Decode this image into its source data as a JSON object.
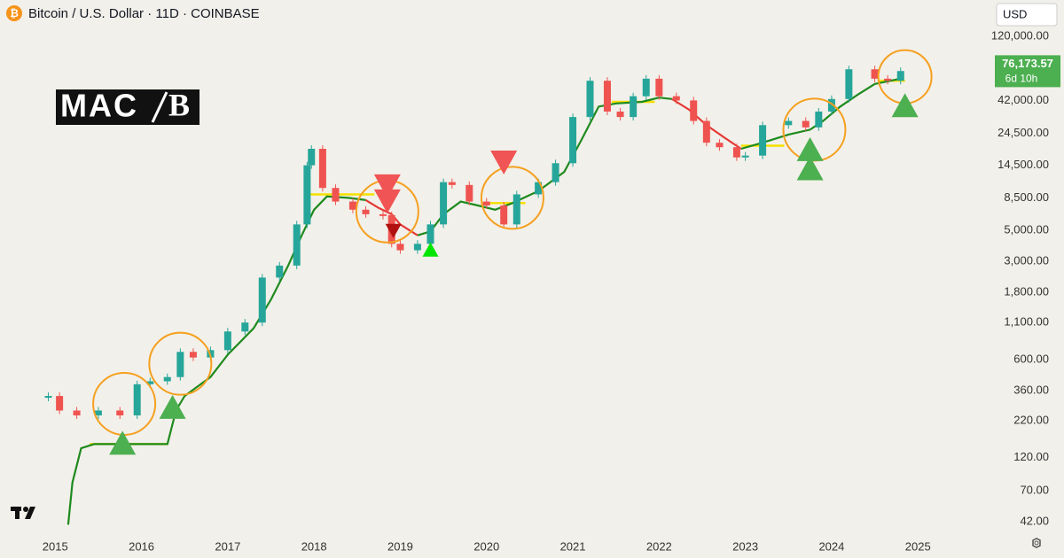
{
  "chart_data": {
    "type": "candlestick",
    "title": "Bitcoin / U.S. Dollar · 11D · COINBASE",
    "currency": "USD",
    "logo": {
      "left": "MAC",
      "right": "B"
    },
    "log_scale": true,
    "grid": false,
    "xlim": [
      2014.36,
      2025.82
    ],
    "xticks": [
      2015,
      2016,
      2017,
      2018,
      2019,
      2020,
      2021,
      2022,
      2023,
      2024,
      2025
    ],
    "ylim": [
      33.3,
      218000
    ],
    "yticks": [
      {
        "value": 42,
        "label": "42.00"
      },
      {
        "value": 70,
        "label": "70.00"
      },
      {
        "value": 120,
        "label": "120.00"
      },
      {
        "value": 220,
        "label": "220.00"
      },
      {
        "value": 360,
        "label": "360.00"
      },
      {
        "value": 600,
        "label": "600.00"
      },
      {
        "value": 1100,
        "label": "1,100.00"
      },
      {
        "value": 1800,
        "label": "1,800.00"
      },
      {
        "value": 3000,
        "label": "3,000.00"
      },
      {
        "value": 5000,
        "label": "5,000.00"
      },
      {
        "value": 8500,
        "label": "8,500.00"
      },
      {
        "value": 14500,
        "label": "14,500.00"
      },
      {
        "value": 24500,
        "label": "24,500.00"
      },
      {
        "value": 42000,
        "label": "42,000.00"
      },
      {
        "value": 120000,
        "label": "120,000.00"
      }
    ],
    "price": {
      "up_color": "#26a69a",
      "down_color": "#ef5350",
      "x": [
        2014.92,
        2015.05,
        2015.25,
        2015.5,
        2015.75,
        2015.95,
        2016.1,
        2016.3,
        2016.45,
        2016.6,
        2016.8,
        2017.0,
        2017.2,
        2017.4,
        2017.6,
        2017.8,
        2017.92,
        2017.97,
        2018.1,
        2018.25,
        2018.45,
        2018.6,
        2018.8,
        2018.9,
        2019.0,
        2019.2,
        2019.35,
        2019.5,
        2019.6,
        2019.8,
        2020.0,
        2020.2,
        2020.35,
        2020.6,
        2020.8,
        2021.0,
        2021.2,
        2021.4,
        2021.55,
        2021.7,
        2021.85,
        2022.0,
        2022.2,
        2022.4,
        2022.55,
        2022.7,
        2022.9,
        2023.0,
        2023.2,
        2023.5,
        2023.7,
        2023.85,
        2024.0,
        2024.2,
        2024.5,
        2024.65,
        2024.8
      ],
      "values": [
        330,
        260,
        240,
        260,
        240,
        400,
        420,
        450,
        680,
        620,
        700,
        950,
        1100,
        2300,
        2800,
        5500,
        14500,
        19000,
        10000,
        8000,
        7000,
        6500,
        6400,
        4000,
        3600,
        4000,
        5500,
        11000,
        10500,
        8000,
        7500,
        5500,
        9000,
        11000,
        15000,
        32000,
        58000,
        35000,
        32000,
        45000,
        60000,
        45000,
        42000,
        30000,
        21000,
        19500,
        16500,
        17000,
        28000,
        30000,
        27000,
        35000,
        43000,
        70000,
        60000,
        58000,
        68000
      ]
    },
    "last_price": {
      "value": 76173.57,
      "label": "76,173.57",
      "countdown": "6d 10h",
      "color": "#4caf50"
    },
    "trend": {
      "x": [
        2015.15,
        2015.2,
        2015.3,
        2015.45,
        2015.9,
        2016.3,
        2016.4,
        2016.5,
        2016.8,
        2017.0,
        2017.3,
        2017.5,
        2017.7,
        2017.85,
        2018.0,
        2018.15,
        2018.4,
        2018.6,
        2018.75,
        2018.9,
        2019.0,
        2019.2,
        2019.35,
        2019.5,
        2019.7,
        2019.9,
        2020.1,
        2020.3,
        2020.6,
        2020.9,
        2021.1,
        2021.3,
        2021.5,
        2021.8,
        2022.0,
        2022.15,
        2022.35,
        2022.55,
        2022.75,
        2022.95,
        2023.2,
        2023.5,
        2023.75,
        2023.9,
        2024.1,
        2024.3,
        2024.5,
        2024.8
      ],
      "series": [
        {
          "color": "#1e8a1e",
          "values": [
            40,
            80,
            140,
            150,
            150,
            150,
            260,
            330,
            450,
            650,
            1000,
            1600,
            2800,
            4500,
            7000,
            8700,
            8500,
            8200,
            null,
            null,
            null,
            4600,
            4900,
            6500,
            8000,
            7500,
            7000,
            7800,
            9500,
            13000,
            22000,
            38000,
            40000,
            41000,
            44000,
            43000,
            null,
            null,
            null,
            19000,
            21000,
            24000,
            26000,
            30000,
            38000,
            46000,
            55000,
            60000
          ]
        },
        {
          "color": "#e53935",
          "values": [
            null,
            null,
            null,
            null,
            null,
            null,
            null,
            null,
            null,
            null,
            null,
            null,
            null,
            null,
            null,
            null,
            null,
            8200,
            7200,
            6500,
            5500,
            4600,
            null,
            null,
            null,
            null,
            null,
            null,
            null,
            null,
            null,
            null,
            null,
            null,
            null,
            43000,
            36000,
            28000,
            23000,
            19000,
            null,
            null,
            null,
            null,
            null,
            null,
            null,
            null
          ]
        }
      ]
    },
    "levels": {
      "color": "#f5e100",
      "items": [
        {
          "x": [
            2015.4,
            2016.3
          ],
          "value": 150
        },
        {
          "x": [
            2017.95,
            2018.7
          ],
          "value": 9000
        },
        {
          "x": [
            2019.95,
            2020.45
          ],
          "value": 7800
        },
        {
          "x": [
            2021.45,
            2021.95
          ],
          "value": 41000
        },
        {
          "x": [
            2022.95,
            2023.45
          ],
          "value": 20000
        },
        {
          "x": [
            2024.55,
            2024.85
          ],
          "value": 58000
        }
      ]
    },
    "circles": {
      "color": "#f5a020",
      "x": [
        2015.8,
        2016.45,
        2018.85,
        2020.3,
        2023.8,
        2024.85
      ],
      "values": [
        290,
        560,
        6800,
        8500,
        26000,
        62000
      ]
    },
    "buy_signals": {
      "color": "#4caf50",
      "x": [
        2015.78,
        2016.36,
        2023.75,
        2023.75,
        2024.85
      ],
      "values": [
        150,
        270,
        13500,
        18500,
        38000
      ]
    },
    "minor_buy_signals": {
      "color": "#00e600",
      "x": [
        2019.35
      ],
      "values": [
        3600
      ]
    },
    "sell_signals": {
      "color": "#f05454",
      "x": [
        2018.85,
        2018.85,
        2020.2
      ],
      "values": [
        10500,
        8200,
        15500
      ]
    },
    "minor_sell_signals": {
      "color": "#b01010",
      "x": [
        2018.92
      ],
      "values": [
        5000
      ]
    }
  }
}
